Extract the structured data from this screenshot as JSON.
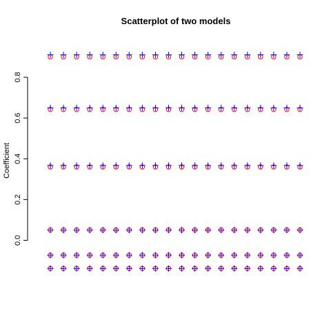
{
  "chart_data": {
    "type": "scatter",
    "title": "Scatterplot of two models",
    "xlabel": "",
    "ylabel": "Coefficient",
    "yticks": [
      0.0,
      0.2,
      0.4,
      0.6,
      0.8
    ],
    "ytick_labels": [
      "0.0",
      "0.2",
      "0.4",
      "0.6",
      "0.8"
    ],
    "ylim": [
      -0.12,
      0.92
    ],
    "xlim": [
      1,
      20
    ],
    "x": [
      1,
      2,
      3,
      4,
      5,
      6,
      7,
      8,
      9,
      10,
      11,
      12,
      13,
      14,
      15,
      16,
      17,
      18,
      19,
      20
    ],
    "grid": false,
    "series": [
      {
        "marker": "circle",
        "color": "#ff0000",
        "levels": [
          0.9,
          0.642,
          0.36,
          0.051,
          -0.073,
          -0.138
        ]
      },
      {
        "marker": "plus",
        "color": "#0000ff",
        "levels": [
          0.91,
          0.65,
          0.367,
          0.05,
          -0.073,
          -0.138
        ]
      }
    ]
  }
}
